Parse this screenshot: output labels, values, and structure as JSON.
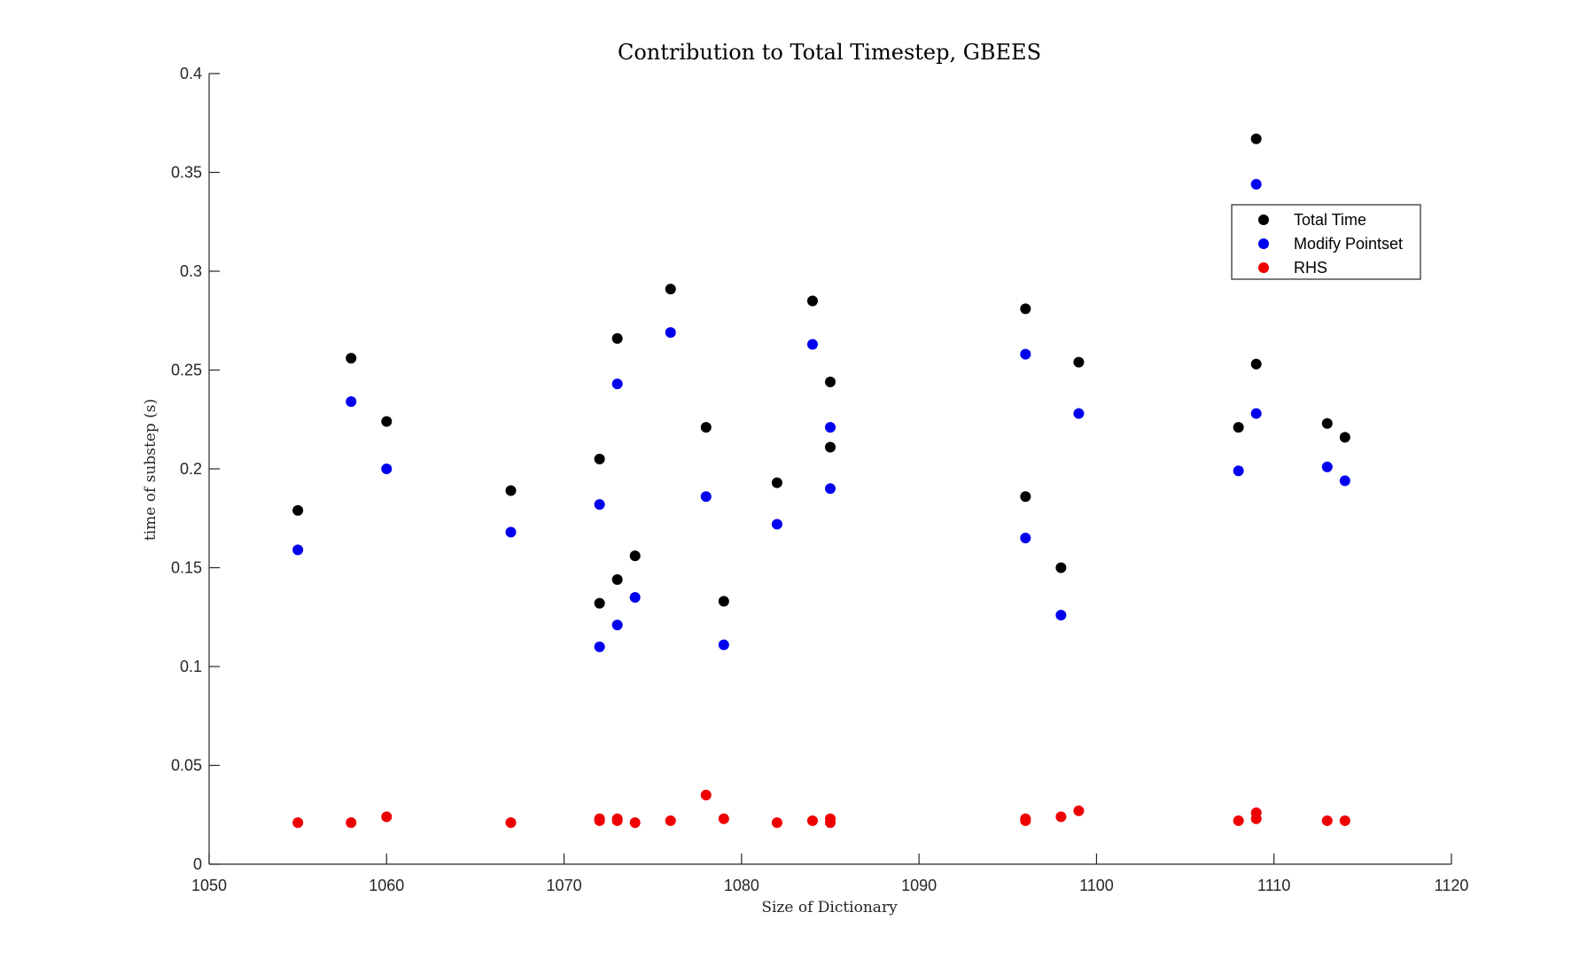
{
  "chart_data": {
    "type": "scatter",
    "title": "Contribution to Total Timestep, GBEES",
    "xlabel": "Size of Dictionary",
    "ylabel": "time of substep (s)",
    "xlim": [
      1050,
      1120
    ],
    "ylim": [
      0,
      0.4
    ],
    "xticks": [
      1050,
      1060,
      1070,
      1080,
      1090,
      1100,
      1110,
      1120
    ],
    "xtick_labels": [
      "1050",
      "1060",
      "1070",
      "1080",
      "1090",
      "1100",
      "1110",
      "1120"
    ],
    "yticks": [
      0,
      0.05,
      0.1,
      0.15,
      0.2,
      0.25,
      0.3,
      0.35,
      0.4
    ],
    "ytick_labels": [
      "0",
      "0.05",
      "0.1",
      "0.15",
      "0.2",
      "0.25",
      "0.3",
      "0.35",
      "0.4"
    ],
    "grid": false,
    "legend_position": "top-right",
    "series": [
      {
        "name": "Total Time",
        "color": "#000000",
        "points": [
          [
            1055,
            0.179
          ],
          [
            1058,
            0.256
          ],
          [
            1060,
            0.224
          ],
          [
            1067,
            0.189
          ],
          [
            1072,
            0.205
          ],
          [
            1072,
            0.132
          ],
          [
            1073,
            0.266
          ],
          [
            1073,
            0.144
          ],
          [
            1074,
            0.156
          ],
          [
            1076,
            0.291
          ],
          [
            1078,
            0.221
          ],
          [
            1079,
            0.133
          ],
          [
            1082,
            0.193
          ],
          [
            1084,
            0.285
          ],
          [
            1085,
            0.244
          ],
          [
            1085,
            0.211
          ],
          [
            1096,
            0.281
          ],
          [
            1096,
            0.186
          ],
          [
            1098,
            0.15
          ],
          [
            1099,
            0.254
          ],
          [
            1108,
            0.221
          ],
          [
            1109,
            0.367
          ],
          [
            1109,
            0.253
          ],
          [
            1113,
            0.223
          ],
          [
            1114,
            0.216
          ]
        ]
      },
      {
        "name": "Modify Pointset",
        "color": "#0000ee",
        "points": [
          [
            1055,
            0.159
          ],
          [
            1058,
            0.234
          ],
          [
            1060,
            0.2
          ],
          [
            1067,
            0.168
          ],
          [
            1072,
            0.182
          ],
          [
            1072,
            0.11
          ],
          [
            1073,
            0.243
          ],
          [
            1073,
            0.121
          ],
          [
            1074,
            0.135
          ],
          [
            1076,
            0.269
          ],
          [
            1078,
            0.186
          ],
          [
            1079,
            0.111
          ],
          [
            1082,
            0.172
          ],
          [
            1084,
            0.263
          ],
          [
            1085,
            0.221
          ],
          [
            1085,
            0.19
          ],
          [
            1096,
            0.258
          ],
          [
            1096,
            0.165
          ],
          [
            1098,
            0.126
          ],
          [
            1099,
            0.228
          ],
          [
            1108,
            0.199
          ],
          [
            1109,
            0.344
          ],
          [
            1109,
            0.228
          ],
          [
            1113,
            0.201
          ],
          [
            1114,
            0.194
          ]
        ]
      },
      {
        "name": "RHS",
        "color": "#ee0000",
        "points": [
          [
            1055,
            0.021
          ],
          [
            1058,
            0.021
          ],
          [
            1060,
            0.024
          ],
          [
            1067,
            0.021
          ],
          [
            1072,
            0.022
          ],
          [
            1072,
            0.023
          ],
          [
            1073,
            0.023
          ],
          [
            1073,
            0.022
          ],
          [
            1074,
            0.021
          ],
          [
            1076,
            0.022
          ],
          [
            1078,
            0.035
          ],
          [
            1079,
            0.023
          ],
          [
            1082,
            0.021
          ],
          [
            1084,
            0.022
          ],
          [
            1085,
            0.023
          ],
          [
            1085,
            0.021
          ],
          [
            1096,
            0.023
          ],
          [
            1096,
            0.022
          ],
          [
            1098,
            0.024
          ],
          [
            1099,
            0.027
          ],
          [
            1108,
            0.022
          ],
          [
            1109,
            0.026
          ],
          [
            1109,
            0.023
          ],
          [
            1113,
            0.022
          ],
          [
            1114,
            0.022
          ]
        ]
      }
    ]
  }
}
